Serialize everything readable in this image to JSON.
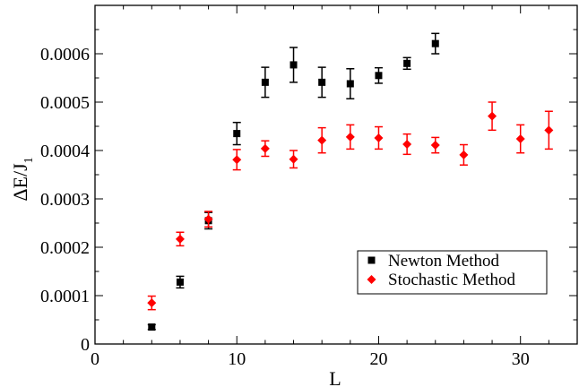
{
  "chart_data": {
    "type": "scatter",
    "xlabel": "L",
    "ylabel": {
      "main": "ΔE/J",
      "sub": "1"
    },
    "xlim": [
      0,
      34
    ],
    "ylim": [
      0,
      0.0007
    ],
    "x_ticks": [
      {
        "value": 0,
        "label": "0"
      },
      {
        "value": 10,
        "label": "10"
      },
      {
        "value": 20,
        "label": "20"
      },
      {
        "value": 30,
        "label": "30"
      }
    ],
    "y_ticks": [
      {
        "value": 0,
        "label": "0"
      },
      {
        "value": 0.0001,
        "label": "0.0001"
      },
      {
        "value": 0.0002,
        "label": "0.0002"
      },
      {
        "value": 0.0003,
        "label": "0.0003"
      },
      {
        "value": 0.0004,
        "label": "0.0004"
      },
      {
        "value": 0.0005,
        "label": "0.0005"
      },
      {
        "value": 0.0006,
        "label": "0.0006"
      }
    ],
    "x_minor_step": 2,
    "y_minor_step": 5e-05,
    "grid": false,
    "legend_position": "lower-right",
    "series": [
      {
        "name": "Newton Method",
        "marker": "square",
        "color": "#000000",
        "points": [
          {
            "x": 4,
            "y": 3.5e-05,
            "err": 5e-06
          },
          {
            "x": 6,
            "y": 0.000128,
            "err": 1.2e-05
          },
          {
            "x": 8,
            "y": 0.000255,
            "err": 1.7e-05
          },
          {
            "x": 10,
            "y": 0.000435,
            "err": 2.3e-05
          },
          {
            "x": 12,
            "y": 0.000541,
            "err": 3.1e-05
          },
          {
            "x": 14,
            "y": 0.000577,
            "err": 3.6e-05
          },
          {
            "x": 16,
            "y": 0.000541,
            "err": 3.1e-05
          },
          {
            "x": 18,
            "y": 0.000538,
            "err": 3.1e-05
          },
          {
            "x": 20,
            "y": 0.000555,
            "err": 1.6e-05
          },
          {
            "x": 22,
            "y": 0.00058,
            "err": 1.2e-05
          },
          {
            "x": 24,
            "y": 0.000621,
            "err": 2.1e-05
          }
        ]
      },
      {
        "name": "Stochastic Method",
        "marker": "diamond",
        "color": "#ff0000",
        "points": [
          {
            "x": 4,
            "y": 8.5e-05,
            "err": 1.4e-05
          },
          {
            "x": 6,
            "y": 0.000217,
            "err": 1.4e-05
          },
          {
            "x": 8,
            "y": 0.000258,
            "err": 1.6e-05
          },
          {
            "x": 10,
            "y": 0.000381,
            "err": 2.1e-05
          },
          {
            "x": 12,
            "y": 0.000404,
            "err": 1.6e-05
          },
          {
            "x": 14,
            "y": 0.000382,
            "err": 1.8e-05
          },
          {
            "x": 16,
            "y": 0.000421,
            "err": 2.6e-05
          },
          {
            "x": 18,
            "y": 0.000428,
            "err": 2.5e-05
          },
          {
            "x": 20,
            "y": 0.000426,
            "err": 2.3e-05
          },
          {
            "x": 22,
            "y": 0.000413,
            "err": 2.1e-05
          },
          {
            "x": 24,
            "y": 0.000411,
            "err": 1.6e-05
          },
          {
            "x": 26,
            "y": 0.000391,
            "err": 2.1e-05
          },
          {
            "x": 28,
            "y": 0.000471,
            "err": 2.9e-05
          },
          {
            "x": 30,
            "y": 0.000424,
            "err": 2.9e-05
          },
          {
            "x": 32,
            "y": 0.000442,
            "err": 3.9e-05
          }
        ]
      }
    ]
  }
}
